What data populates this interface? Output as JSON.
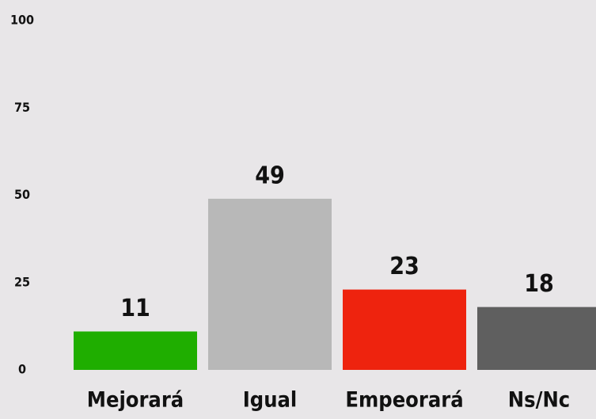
{
  "chart_data": {
    "type": "bar",
    "categories": [
      "Mejorará",
      "Igual",
      "Empeorará",
      "Ns/Nc"
    ],
    "values": [
      11,
      49,
      23,
      18
    ],
    "colors": [
      "#1fae00",
      "#b8b8b8",
      "#ee230e",
      "#5f5f5f"
    ],
    "ylim": [
      0,
      100
    ],
    "yticks": [
      0,
      25,
      50,
      75,
      100
    ],
    "grid": false
  }
}
